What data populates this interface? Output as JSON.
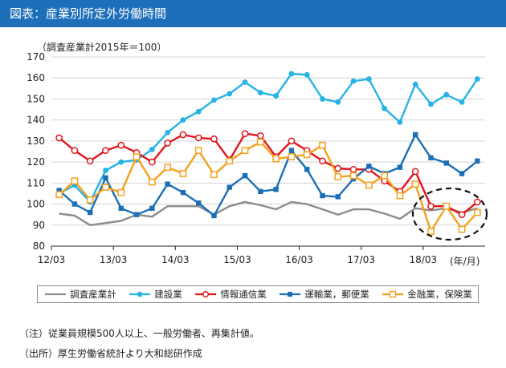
{
  "header": {
    "title": "図表：産業別所定外労働時間"
  },
  "unit_note": "（調査産業計2015年＝100）",
  "notes": {
    "note1": "（注）従業員規模500人以上、一般労働者、再集計値。",
    "note2": "（出所）厚生労働省統計より大和総研作成"
  },
  "colors": {
    "total": "#8c8c8c",
    "construction": "#26b3e6",
    "info": "#e3141b",
    "transport": "#1a6fb7",
    "finance": "#f5a01e"
  },
  "chart_data": {
    "type": "line",
    "title": "",
    "xlabel": "(年/月)",
    "ylabel": "",
    "ylim": [
      80,
      170
    ],
    "yticks": [
      80,
      90,
      100,
      110,
      120,
      130,
      140,
      150,
      160,
      170
    ],
    "xticks": [
      "12/03",
      "13/03",
      "14/03",
      "15/03",
      "16/03",
      "17/03",
      "18/03"
    ],
    "x": [
      "12/03",
      "12/06",
      "12/09",
      "12/12",
      "13/03",
      "13/06",
      "13/09",
      "13/12",
      "14/03",
      "14/06",
      "14/09",
      "14/12",
      "15/03",
      "15/06",
      "15/09",
      "15/12",
      "16/03",
      "16/06",
      "16/09",
      "16/12",
      "17/03",
      "17/06",
      "17/09",
      "17/12",
      "18/03",
      "18/06",
      "18/09",
      "18/12"
    ],
    "grid": true,
    "legend_position": "bottom",
    "series": [
      {
        "key": "total",
        "name": "調査産業計",
        "marker": "none",
        "values": [
          95.5,
          94.5,
          90,
          91,
          92,
          95,
          94,
          99,
          99,
          99,
          95,
          99,
          101,
          99.5,
          97.5,
          101,
          100,
          97.5,
          95,
          97.5,
          97.5,
          95.5,
          93,
          98,
          97,
          98,
          96,
          98
        ]
      },
      {
        "key": "construction",
        "name": "建設業",
        "marker": "circle-filled",
        "values": [
          105,
          109,
          101,
          116,
          120,
          121,
          126,
          134,
          140,
          144,
          149.5,
          152.5,
          158,
          153,
          151.5,
          162,
          161.5,
          150,
          148.5,
          158.5,
          159.5,
          145.5,
          139,
          157,
          147.5,
          152,
          148.5,
          159.5
        ]
      },
      {
        "key": "info",
        "name": "情報通信業",
        "marker": "circle-open",
        "values": [
          131.5,
          125.5,
          120.5,
          125.5,
          128,
          124.5,
          120,
          129,
          133,
          131.5,
          131,
          121,
          133.5,
          132.5,
          122.5,
          130,
          125.5,
          120.5,
          117,
          116.5,
          116.5,
          111,
          106,
          115.5,
          99,
          99,
          95,
          101
        ]
      },
      {
        "key": "transport",
        "name": "運輸業，郵便業",
        "marker": "square-filled",
        "values": [
          106.5,
          100,
          96,
          112.5,
          98,
          95,
          98,
          109.5,
          105.5,
          100.5,
          94.5,
          108,
          113.5,
          106,
          107,
          125.5,
          116.5,
          104,
          103.5,
          112,
          118,
          114.5,
          117.5,
          133,
          122,
          119.5,
          114.5,
          120.5
        ]
      },
      {
        "key": "finance",
        "name": "金融業，保険業",
        "marker": "square-open",
        "values": [
          104.5,
          111,
          102,
          108,
          105.5,
          122.5,
          110.5,
          117.5,
          114.5,
          125.5,
          114,
          120.5,
          125.5,
          129.5,
          121.5,
          122.5,
          123.5,
          128,
          113,
          113.5,
          109,
          113.5,
          104,
          109.5,
          87,
          99,
          88,
          96
        ]
      }
    ]
  }
}
